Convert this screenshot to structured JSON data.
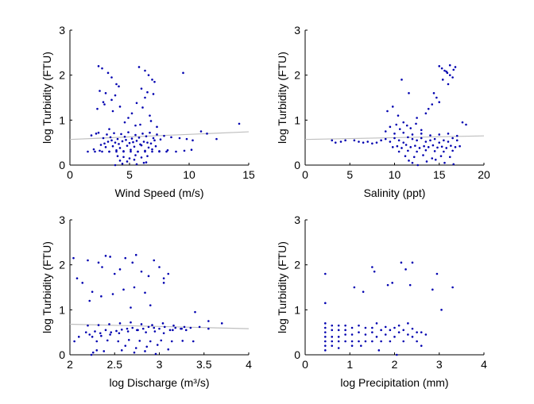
{
  "colors": {
    "points": "#0000b0",
    "fit_line": "#bfbfbf",
    "axes": "#000000",
    "background": "#ffffff"
  },
  "chart_data": [
    {
      "type": "scatter",
      "xlabel": "Wind Speed (m/s)",
      "ylabel": "log Turbidity (FTU)",
      "xlim": [
        0,
        15
      ],
      "ylim": [
        0,
        3
      ],
      "xticks": [
        "0",
        "5",
        "10",
        "15"
      ],
      "yticks": [
        "0",
        "1",
        "2",
        "3"
      ],
      "grid": false,
      "fit_line": {
        "x": [
          0,
          15
        ],
        "y": [
          0.57,
          0.74
        ]
      },
      "x": [
        2.6,
        2.9,
        3.2,
        3.5,
        3.8,
        4.1,
        4.4,
        4.7,
        5.0,
        5.3,
        5.6,
        5.9,
        6.2,
        6.5,
        6.8,
        7.1,
        2.8,
        3.4,
        4.0,
        4.6,
        5.2,
        5.8,
        6.4,
        7.0,
        7.6,
        3.0,
        3.6,
        4.2,
        4.8,
        5.4,
        6.0,
        6.6,
        7.2,
        2.2,
        1.8,
        2.4,
        3.1,
        3.7,
        4.3,
        4.9,
        5.5,
        6.1,
        6.7,
        7.3,
        7.9,
        8.5,
        9.2,
        9.8,
        10.3,
        2.0,
        2.5,
        3.3,
        3.9,
        4.5,
        5.1,
        5.7,
        6.3,
        6.9,
        7.5,
        8.2,
        8.9,
        9.6,
        10.2,
        1.5,
        2.1,
        2.7,
        3.3,
        3.9,
        4.5,
        5.1,
        5.7,
        6.3,
        6.9,
        7.5,
        8.1,
        4.0,
        4.5,
        5.0,
        5.5,
        6.0,
        6.5,
        4.2,
        4.8,
        5.4,
        6.2,
        3.8,
        4.4,
        5.6,
        6.4,
        11.0,
        11.5,
        14.2,
        12.3,
        2.4,
        2.7,
        3.2,
        3.5,
        3.9,
        4.1,
        5.8,
        6.3,
        6.6,
        6.9,
        7.1,
        2.5,
        3.0,
        3.8,
        6.0,
        6.5,
        7.0,
        2.8,
        3.5,
        5.6,
        6.3,
        9.5,
        2.3,
        3.6,
        4.2,
        5.2,
        6.1,
        6.7,
        4.6,
        5.9,
        7.3,
        3.3,
        5.5,
        2.9,
        4.9,
        6.8
      ],
      "y": [
        0.45,
        0.48,
        0.52,
        0.55,
        0.5,
        0.47,
        0.53,
        0.56,
        0.49,
        0.51,
        0.54,
        0.46,
        0.52,
        0.5,
        0.48,
        0.55,
        0.6,
        0.62,
        0.58,
        0.63,
        0.59,
        0.61,
        0.64,
        0.6,
        0.57,
        0.4,
        0.42,
        0.38,
        0.43,
        0.41,
        0.44,
        0.39,
        0.42,
        0.7,
        0.66,
        0.72,
        0.68,
        0.71,
        0.69,
        0.73,
        0.67,
        0.7,
        0.72,
        0.68,
        0.65,
        0.62,
        0.6,
        0.58,
        0.55,
        0.35,
        0.32,
        0.3,
        0.33,
        0.31,
        0.34,
        0.3,
        0.32,
        0.35,
        0.31,
        0.33,
        0.3,
        0.32,
        0.34,
        0.3,
        0.3,
        0.3,
        0.3,
        0.3,
        0.3,
        0.3,
        0.3,
        0.3,
        0.3,
        0.3,
        0.3,
        0.2,
        0.18,
        0.15,
        0.22,
        0.17,
        0.2,
        0.1,
        0.08,
        0.12,
        0.05,
        0.0,
        0.03,
        0.02,
        0.06,
        0.75,
        0.7,
        0.92,
        0.58,
        2.2,
        2.15,
        2.05,
        1.95,
        1.8,
        1.75,
        2.18,
        2.1,
        2.0,
        1.9,
        1.85,
        1.65,
        1.6,
        1.55,
        1.7,
        1.62,
        1.58,
        1.4,
        1.45,
        1.38,
        1.5,
        2.05,
        1.25,
        1.2,
        1.3,
        1.15,
        1.28,
        1.1,
        0.95,
        0.9,
        0.85,
        0.8,
        0.88,
        1.35,
        1.05,
        0.98
      ]
    },
    {
      "type": "scatter",
      "xlabel": "Salinity (ppt)",
      "ylabel": "log Turbidity (FTU)",
      "xlim": [
        0,
        20
      ],
      "ylim": [
        0,
        3
      ],
      "xticks": [
        "0",
        "5",
        "10",
        "15",
        "20"
      ],
      "yticks": [
        "0",
        "1",
        "2",
        "3"
      ],
      "grid": false,
      "fit_line": {
        "x": [
          0,
          20
        ],
        "y": [
          0.57,
          0.65
        ]
      },
      "x": [
        3.0,
        3.4,
        4.0,
        4.5,
        5.5,
        6.0,
        6.5,
        7.0,
        7.5,
        8.0,
        8.5,
        9.0,
        9.5,
        10.0,
        10.5,
        11.0,
        11.5,
        12.0,
        12.5,
        13.0,
        13.5,
        14.0,
        14.5,
        15.0,
        15.5,
        16.0,
        16.5,
        17.0,
        9.8,
        10.3,
        10.8,
        11.3,
        11.8,
        12.3,
        12.8,
        13.3,
        13.8,
        14.3,
        14.8,
        15.3,
        15.8,
        16.3,
        16.8,
        17.3,
        10.0,
        11.0,
        12.0,
        13.0,
        14.0,
        15.0,
        16.0,
        17.0,
        10.5,
        11.5,
        12.5,
        13.5,
        14.5,
        15.5,
        16.5,
        11.2,
        12.2,
        13.2,
        14.2,
        15.2,
        16.2,
        12.0,
        12.6,
        11.6,
        13.6,
        14.6,
        15.6,
        16.6,
        9.5,
        10.2,
        10.6,
        11.0,
        11.4,
        11.8,
        12.4,
        9.2,
        9.8,
        10.4,
        15.0,
        15.3,
        15.6,
        15.9,
        16.2,
        16.5,
        16.8,
        15.4,
        15.8,
        16.2,
        16.6,
        14.4,
        14.7,
        15.0,
        14.2,
        13.8,
        13.5,
        17.6,
        18.0,
        9.0,
        12.5,
        16.0,
        13.0,
        10.8,
        11.6
      ],
      "y": [
        0.55,
        0.5,
        0.52,
        0.55,
        0.55,
        0.52,
        0.5,
        0.52,
        0.48,
        0.5,
        0.55,
        0.58,
        0.52,
        0.6,
        0.55,
        0.5,
        0.62,
        0.58,
        0.55,
        0.6,
        0.52,
        0.55,
        0.58,
        0.5,
        0.55,
        0.52,
        0.6,
        0.55,
        0.4,
        0.42,
        0.38,
        0.45,
        0.4,
        0.43,
        0.38,
        0.42,
        0.4,
        0.44,
        0.39,
        0.41,
        0.38,
        0.43,
        0.4,
        0.42,
        0.7,
        0.72,
        0.68,
        0.7,
        0.66,
        0.68,
        0.7,
        0.65,
        0.3,
        0.32,
        0.3,
        0.33,
        0.31,
        0.3,
        0.32,
        0.2,
        0.18,
        0.22,
        0.15,
        0.2,
        0.18,
        0.05,
        0.0,
        0.1,
        0.08,
        0.12,
        0.05,
        0.02,
        0.85,
        0.9,
        0.8,
        0.95,
        0.88,
        0.82,
        0.92,
        1.2,
        1.3,
        1.1,
        2.2,
        2.15,
        2.1,
        2.05,
        2.0,
        1.95,
        2.18,
        1.9,
        2.08,
        2.22,
        2.12,
        1.6,
        1.5,
        1.4,
        1.35,
        1.25,
        1.15,
        0.95,
        0.9,
        0.75,
        1.05,
        1.8,
        0.78,
        1.9,
        1.6
      ]
    },
    {
      "type": "scatter",
      "xlabel": "log Discharge (m³/s)",
      "ylabel": "log Turbidity (FTU)",
      "xlim": [
        2,
        4
      ],
      "ylim": [
        0,
        3
      ],
      "xticks": [
        "2",
        "2.5",
        "3",
        "3.5",
        "4"
      ],
      "yticks": [
        "0",
        "1",
        "2",
        "3"
      ],
      "grid": false,
      "fit_line": {
        "x": [
          2,
          4
        ],
        "y": [
          0.68,
          0.58
        ]
      },
      "x": [
        2.05,
        2.1,
        2.18,
        2.22,
        2.28,
        2.34,
        2.4,
        2.46,
        2.52,
        2.58,
        2.64,
        2.7,
        2.76,
        2.82,
        2.88,
        2.94,
        3.0,
        3.06,
        3.12,
        3.18,
        3.24,
        3.3,
        2.25,
        2.35,
        2.45,
        2.55,
        2.65,
        2.75,
        2.85,
        2.95,
        3.05,
        3.15,
        3.25,
        3.35,
        3.45,
        3.55,
        2.3,
        2.42,
        2.54,
        2.66,
        2.78,
        2.9,
        3.02,
        3.14,
        3.26,
        3.38,
        2.2,
        2.32,
        2.44,
        2.56,
        2.68,
        2.8,
        2.92,
        3.04,
        3.16,
        3.28,
        2.62,
        2.74,
        2.86,
        2.98,
        3.1,
        2.58,
        2.72,
        2.84,
        2.96,
        2.24,
        2.26,
        2.3,
        2.38,
        2.04,
        2.08,
        2.14,
        2.2,
        2.32,
        2.36,
        2.4,
        2.45,
        2.5,
        2.56,
        2.62,
        2.7,
        2.74,
        2.8,
        2.88,
        2.94,
        3.0,
        3.05,
        3.1,
        2.25,
        2.35,
        2.48,
        2.6,
        2.72,
        2.84,
        3.4,
        3.55,
        3.7,
        3.05,
        2.22,
        2.9,
        2.68
      ],
      "y": [
        0.3,
        0.4,
        0.5,
        0.45,
        0.52,
        0.48,
        0.55,
        0.5,
        0.53,
        0.56,
        0.58,
        0.6,
        0.55,
        0.58,
        0.62,
        0.6,
        0.58,
        0.62,
        0.55,
        0.6,
        0.58,
        0.55,
        0.4,
        0.42,
        0.45,
        0.48,
        0.52,
        0.55,
        0.5,
        0.52,
        0.48,
        0.55,
        0.58,
        0.6,
        0.62,
        0.58,
        0.3,
        0.32,
        0.3,
        0.33,
        0.31,
        0.3,
        0.32,
        0.3,
        0.31,
        0.3,
        0.65,
        0.66,
        0.68,
        0.7,
        0.72,
        0.68,
        0.66,
        0.7,
        0.65,
        0.62,
        0.2,
        0.15,
        0.18,
        0.22,
        0.12,
        0.1,
        0.05,
        0.08,
        0.02,
        0.0,
        0.05,
        0.1,
        0.08,
        2.15,
        1.7,
        1.6,
        2.1,
        2.05,
        1.95,
        2.2,
        2.18,
        1.8,
        1.9,
        2.15,
        2.05,
        2.22,
        1.85,
        1.75,
        2.1,
        1.95,
        1.7,
        1.8,
        1.4,
        1.3,
        1.35,
        1.45,
        1.5,
        1.38,
        0.95,
        0.75,
        0.7,
        1.6,
        1.2,
        1.1,
        1.05
      ]
    },
    {
      "type": "scatter",
      "xlabel": "log Precipitation (mm)",
      "ylabel": "log Turbidity (FTU)",
      "xlim": [
        0,
        4
      ],
      "ylim": [
        0,
        3
      ],
      "xticks": [
        "0",
        "1",
        "2",
        "3",
        "4"
      ],
      "yticks": [
        "0",
        "1",
        "2",
        "3"
      ],
      "grid": false,
      "fit_line": null,
      "x": [
        0.45,
        0.45,
        0.45,
        0.45,
        0.45,
        0.45,
        0.45,
        0.6,
        0.6,
        0.6,
        0.6,
        0.6,
        0.75,
        0.75,
        0.75,
        0.75,
        0.75,
        0.9,
        0.9,
        0.9,
        0.9,
        1.05,
        1.05,
        1.05,
        1.05,
        1.2,
        1.2,
        1.2,
        1.35,
        1.35,
        1.35,
        1.5,
        1.5,
        1.5,
        1.6,
        1.6,
        1.7,
        1.7,
        1.8,
        1.8,
        1.9,
        1.9,
        2.0,
        2.0,
        2.1,
        2.1,
        2.2,
        2.2,
        2.3,
        2.3,
        2.4,
        2.4,
        2.5,
        2.5,
        2.6,
        2.6,
        2.7,
        0.45,
        0.45,
        1.1,
        1.3,
        1.5,
        1.55,
        1.95,
        2.15,
        2.25,
        2.4,
        2.85,
        3.05,
        3.3,
        2.35,
        1.85,
        2.95,
        1.25,
        1.65,
        2.05
      ],
      "y": [
        0.3,
        0.4,
        0.5,
        0.6,
        0.7,
        0.2,
        0.1,
        0.3,
        0.4,
        0.55,
        0.65,
        0.2,
        0.3,
        0.4,
        0.55,
        0.65,
        0.15,
        0.3,
        0.45,
        0.55,
        0.65,
        0.3,
        0.45,
        0.6,
        0.2,
        0.3,
        0.5,
        0.65,
        0.3,
        0.45,
        0.6,
        0.3,
        0.5,
        0.6,
        0.4,
        0.7,
        0.3,
        0.55,
        0.45,
        0.62,
        0.3,
        0.55,
        0.4,
        0.6,
        0.5,
        0.65,
        0.3,
        0.55,
        0.45,
        0.7,
        0.4,
        0.58,
        0.3,
        0.5,
        0.2,
        0.5,
        0.45,
        1.8,
        1.15,
        1.5,
        1.4,
        1.95,
        1.85,
        1.6,
        2.05,
        1.9,
        2.05,
        1.45,
        1.0,
        1.5,
        1.55,
        1.55,
        1.8,
        0.2,
        0.1,
        0.0
      ]
    }
  ]
}
